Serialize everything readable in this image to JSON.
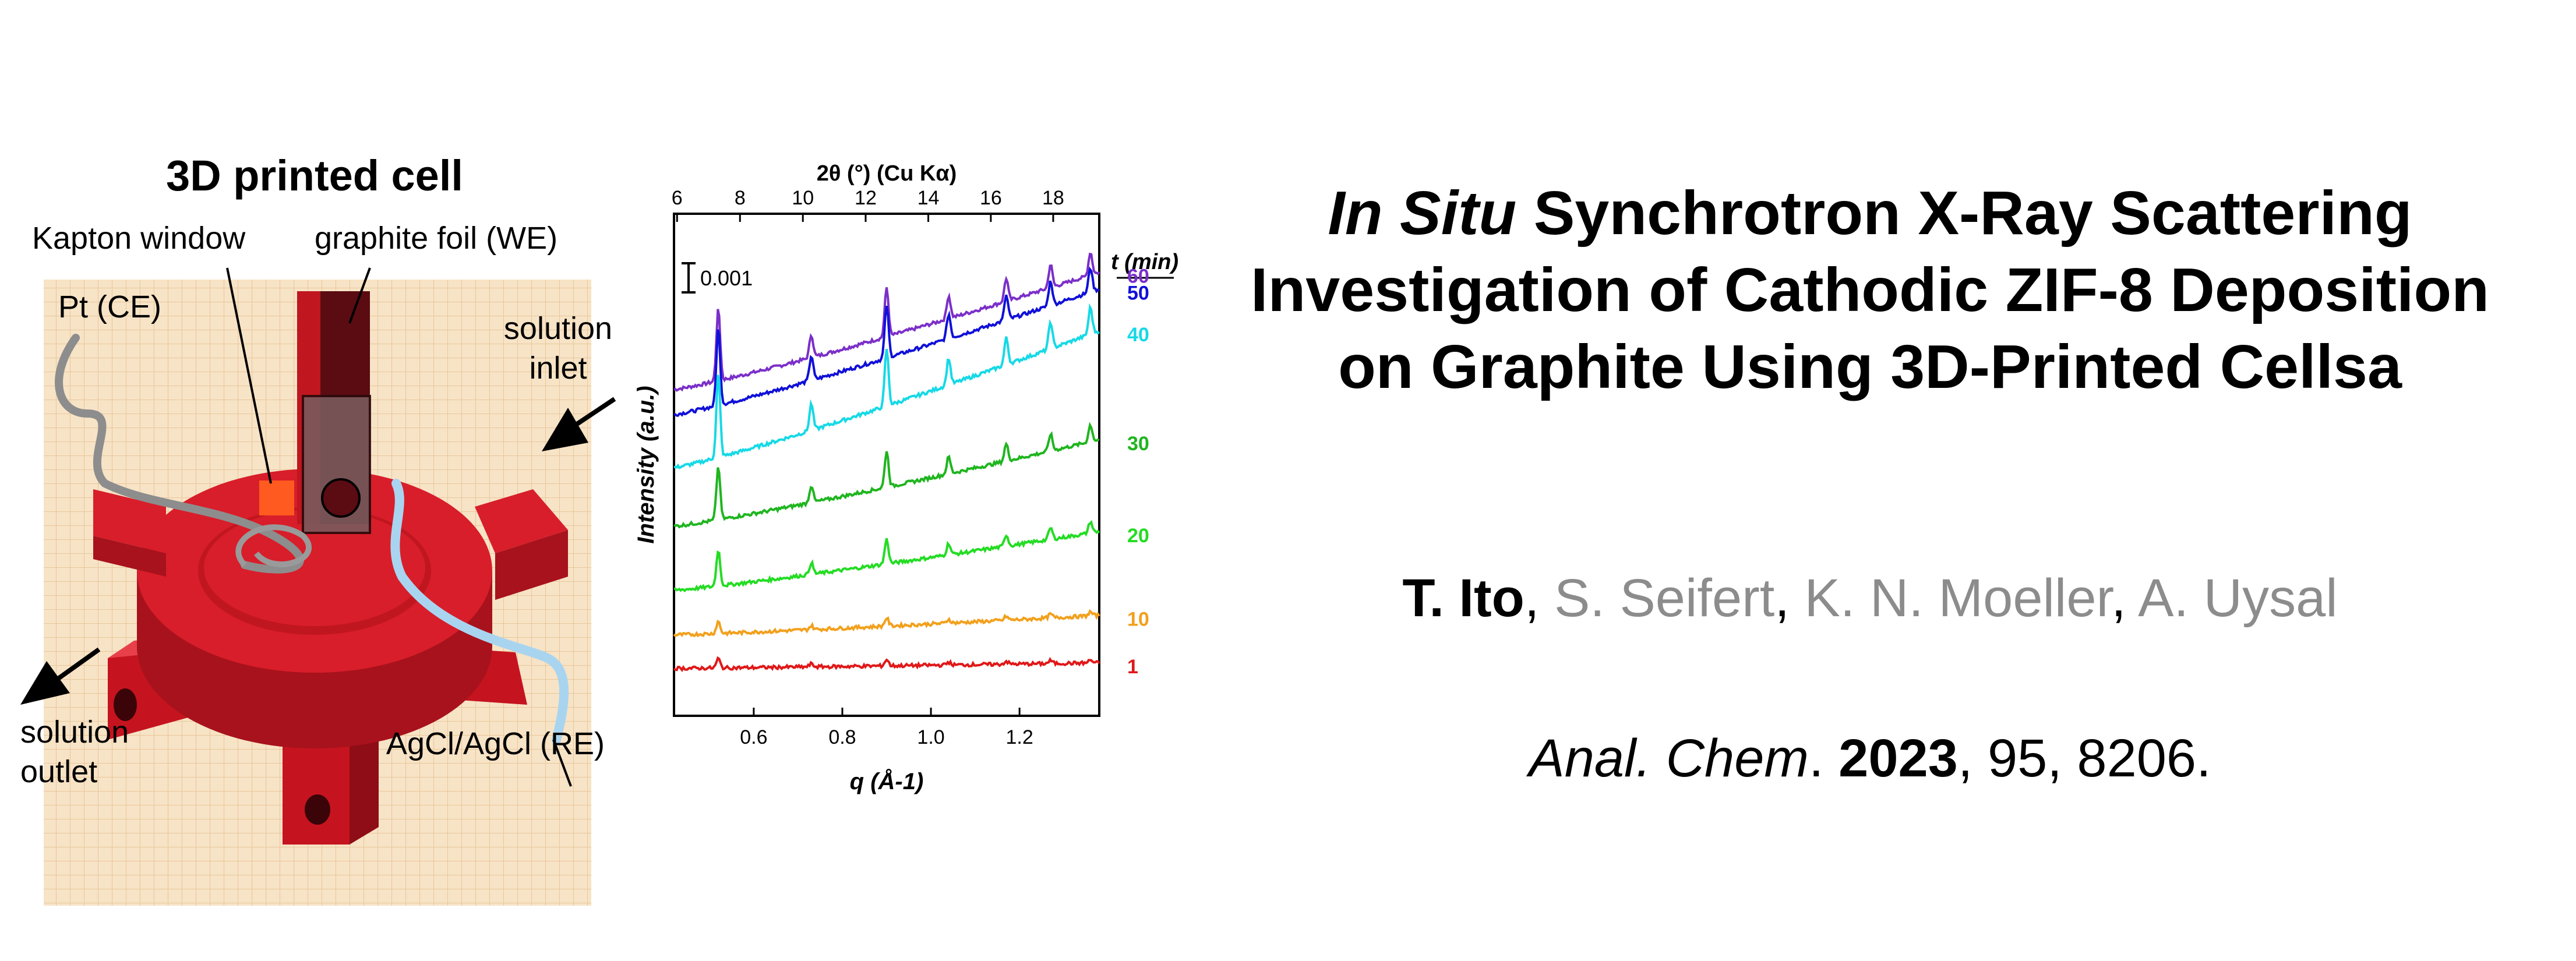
{
  "schematic": {
    "title": "3D printed cell",
    "labels": {
      "kapton": "Kapton window",
      "graphite": "graphite foil (WE)",
      "pt": "Pt (CE)",
      "inlet_line1": "solution",
      "inlet_line2": "inlet",
      "outlet_line1": "solution",
      "outlet_line2": "outlet",
      "ref": "AgCl/AgCl (RE)"
    },
    "colors": {
      "body": "#d81e2a",
      "body_dark": "#a8121c",
      "grid_bg": "#f7e3c6",
      "foil": "#5a0c12",
      "window": "#ff5a1f"
    }
  },
  "chart_data": {
    "type": "line",
    "title": "",
    "xlabel": "q (Å-1)",
    "x2label": "2θ (°) (Cu Kα)",
    "ylabel": "Intensity (a.u.)",
    "xlim": [
      0.42,
      1.38
    ],
    "x_ticks": [
      0.6,
      0.8,
      1.0,
      1.2
    ],
    "x_tick_labels": [
      "0.6",
      "0.8",
      "1.0",
      "1.2"
    ],
    "x2_ticks": [
      6,
      8,
      10,
      12,
      14,
      16,
      18
    ],
    "x2_tick_labels": [
      "6",
      "8",
      "10",
      "12",
      "14",
      "16",
      "18"
    ],
    "scale_bar_label": "0.001",
    "legend_title": "t (min)",
    "peaks_q": [
      0.52,
      0.73,
      0.9,
      1.04,
      1.17,
      1.27,
      1.36
    ],
    "series": [
      {
        "name": "60",
        "color": "#7b2fc9",
        "y_start": 11.7,
        "y_end": 15.9
      },
      {
        "name": "50",
        "color": "#1010d8",
        "y_start": 10.8,
        "y_end": 15.3
      },
      {
        "name": "40",
        "color": "#16d9e6",
        "y_start": 8.9,
        "y_end": 13.8
      },
      {
        "name": "30",
        "color": "#1fb51f",
        "y_start": 6.8,
        "y_end": 9.9
      },
      {
        "name": "20",
        "color": "#24dc24",
        "y_start": 4.5,
        "y_end": 6.6
      },
      {
        "name": "10",
        "color": "#f2a01c",
        "y_start": 2.9,
        "y_end": 3.6
      },
      {
        "name": "1",
        "color": "#e01818",
        "y_start": 1.7,
        "y_end": 1.9
      }
    ]
  },
  "paper": {
    "title_italic": "In Situ",
    "title_line1_rest": " Synchrotron X-Ray Scattering",
    "title_line2": "Investigation of Cathodic ZIF-8 Deposition",
    "title_line3": "on Graphite Using 3D-Printed Cellsa",
    "author_lead": "T. Ito",
    "sep": ", ",
    "coauthors": [
      "S. Seifert",
      "K. N. Moeller",
      "A. Uysal"
    ],
    "journal": "Anal. Chem",
    "journal_dot": ". ",
    "year": "2023",
    "rest": ", 95, 8206."
  }
}
